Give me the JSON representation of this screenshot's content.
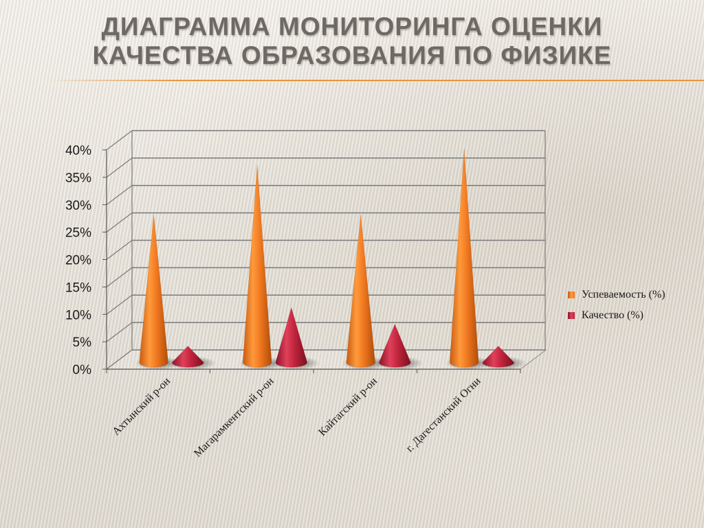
{
  "slide": {
    "title": "ДИАГРАММА МОНИТОРИНГА ОЦЕНКИ КАЧЕСТВА ОБРАЗОВАНИЯ ПО ФИЗИКЕ"
  },
  "chart_data": {
    "type": "bar",
    "subtype": "3d-cone",
    "categories": [
      "Ахтынский р-он",
      "Магарамкентский р-он",
      "Кайтагский р-он",
      "г. Дагестанский Огни"
    ],
    "series": [
      {
        "name": "Успеваемость (%)",
        "color": "#f07820",
        "values": [
          27,
          36,
          27,
          39
        ]
      },
      {
        "name": "Качество (%)",
        "color": "#c0243c",
        "values": [
          3,
          10,
          7,
          3
        ]
      }
    ],
    "yticks": [
      "0%",
      "5%",
      "10%",
      "15%",
      "20%",
      "25%",
      "30%",
      "35%",
      "40%"
    ],
    "ylim": [
      0,
      40
    ],
    "ytick_step": 5,
    "grid": true,
    "legend_position": "right"
  }
}
